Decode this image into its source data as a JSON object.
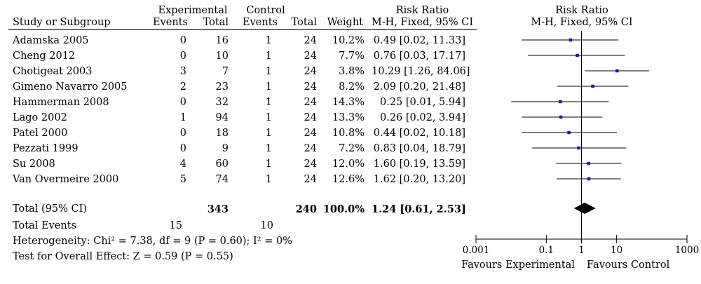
{
  "header": {
    "col_study": "Study or Subgroup",
    "group_experimental": "Experimental",
    "group_control": "Control",
    "events": "Events",
    "total": "Total",
    "weight": "Weight",
    "rr_title": "Risk Ratio",
    "rr_method": "M-H, Fixed, 95% CI",
    "plot_title": "Risk Ratio",
    "plot_method": "M-H, Fixed, 95% CI"
  },
  "studies": [
    {
      "name": "Adamska 2005",
      "e_events": "0",
      "e_total": "16",
      "c_events": "1",
      "c_total": "24",
      "weight": "10.2%",
      "ci_text": "0.49 [0.02, 11.33]"
    },
    {
      "name": "Cheng 2012",
      "e_events": "0",
      "e_total": "10",
      "c_events": "1",
      "c_total": "24",
      "weight": "7.7%",
      "ci_text": "0.76 [0.03, 17.17]"
    },
    {
      "name": "Chotigeat 2003",
      "e_events": "3",
      "e_total": "7",
      "c_events": "1",
      "c_total": "24",
      "weight": "3.8%",
      "ci_text": "10.29 [1.26, 84.06]"
    },
    {
      "name": "Gimeno Navarro 2005",
      "e_events": "2",
      "e_total": "23",
      "c_events": "1",
      "c_total": "24",
      "weight": "8.2%",
      "ci_text": "2.09 [0.20, 21.48]"
    },
    {
      "name": "Hammerman 2008",
      "e_events": "0",
      "e_total": "32",
      "c_events": "1",
      "c_total": "24",
      "weight": "14.3%",
      "ci_text": "0.25 [0.01, 5.94]"
    },
    {
      "name": "Lago 2002",
      "e_events": "1",
      "e_total": "94",
      "c_events": "1",
      "c_total": "24",
      "weight": "13.3%",
      "ci_text": "0.26 [0.02, 3.94]"
    },
    {
      "name": "Patel 2000",
      "e_events": "0",
      "e_total": "18",
      "c_events": "1",
      "c_total": "24",
      "weight": "10.8%",
      "ci_text": "0.44 [0.02, 10.18]"
    },
    {
      "name": "Pezzati 1999",
      "e_events": "0",
      "e_total": "9",
      "c_events": "1",
      "c_total": "24",
      "weight": "7.2%",
      "ci_text": "0.83 [0.04, 18.79]"
    },
    {
      "name": "Su 2008",
      "e_events": "4",
      "e_total": "60",
      "c_events": "1",
      "c_total": "24",
      "weight": "12.0%",
      "ci_text": "1.60 [0.19, 13.59]"
    },
    {
      "name": "Van Overmeire 2000",
      "e_events": "5",
      "e_total": "74",
      "c_events": "1",
      "c_total": "24",
      "weight": "12.6%",
      "ci_text": "1.62 [0.20, 13.20]"
    }
  ],
  "total": {
    "label": "Total (95% CI)",
    "e_total": "343",
    "c_total": "240",
    "weight": "100.0%",
    "ci_text": "1.24 [0.61, 2.53]"
  },
  "total_events": {
    "label": "Total Events",
    "e_events": "15",
    "c_events": "10"
  },
  "heterogeneity": "Heterogeneity: Chi² = 7.38, df = 9 (P = 0.60); I² = 0%",
  "overall_effect": "Test for Overall Effect: Z = 0.59 (P = 0.55)",
  "axis": {
    "favours_left": "Favours Experimental",
    "favours_right": "Favours Control"
  },
  "colors": {
    "point": "#1a1aa6",
    "line": "#000000",
    "diamond": "#000000"
  },
  "chart_data": {
    "type": "scatter",
    "scale": "log",
    "xlim": [
      0.001,
      1000
    ],
    "reference_line": 1,
    "ticks": [
      {
        "value": 0.001,
        "label": "0.001"
      },
      {
        "value": 0.1,
        "label": "0.1"
      },
      {
        "value": 1,
        "label": "1"
      },
      {
        "value": 10,
        "label": "10"
      },
      {
        "value": 1000,
        "label": "1000"
      }
    ],
    "points": [
      {
        "study": "Adamska 2005",
        "rr": 0.49,
        "lower": 0.02,
        "upper": 11.33
      },
      {
        "study": "Cheng 2012",
        "rr": 0.76,
        "lower": 0.03,
        "upper": 17.17
      },
      {
        "study": "Chotigeat 2003",
        "rr": 10.29,
        "lower": 1.26,
        "upper": 84.06
      },
      {
        "study": "Gimeno Navarro 2005",
        "rr": 2.09,
        "lower": 0.2,
        "upper": 21.48
      },
      {
        "study": "Hammerman 2008",
        "rr": 0.25,
        "lower": 0.01,
        "upper": 5.94
      },
      {
        "study": "Lago 2002",
        "rr": 0.26,
        "lower": 0.02,
        "upper": 3.94
      },
      {
        "study": "Patel 2000",
        "rr": 0.44,
        "lower": 0.02,
        "upper": 10.18
      },
      {
        "study": "Pezzati 1999",
        "rr": 0.83,
        "lower": 0.04,
        "upper": 18.79
      },
      {
        "study": "Su 2008",
        "rr": 1.6,
        "lower": 0.19,
        "upper": 13.59
      },
      {
        "study": "Van Overmeire 2000",
        "rr": 1.62,
        "lower": 0.2,
        "upper": 13.2
      }
    ],
    "pooled": {
      "rr": 1.24,
      "lower": 0.61,
      "upper": 2.53
    }
  }
}
